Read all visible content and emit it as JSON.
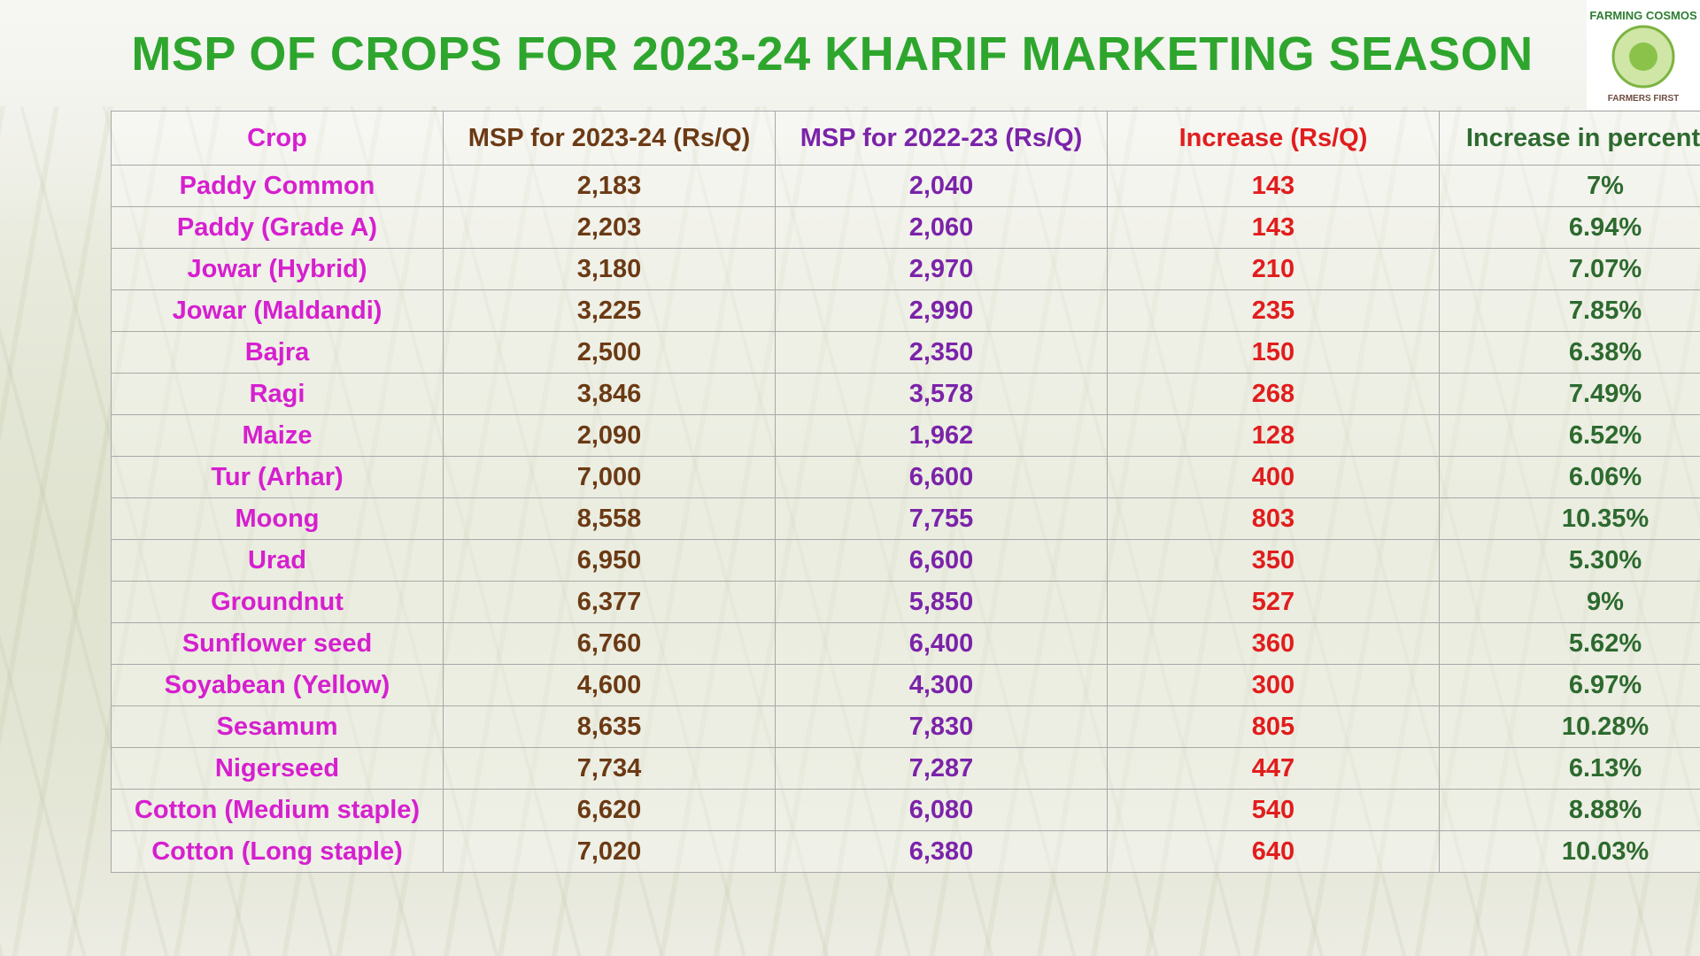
{
  "title": "MSP OF CROPS FOR 2023-24 KHARIF MARKETING SEASON",
  "logo": {
    "top": "FARMING COSMOS",
    "bottom": "FARMERS FIRST"
  },
  "table": {
    "headers": [
      "Crop",
      "MSP for 2023-24 (Rs/Q)",
      "MSP for 2022-23 (Rs/Q)",
      "Increase (Rs/Q)",
      "Increase in percentage"
    ],
    "rows": [
      [
        "Paddy Common",
        "2,183",
        "2,040",
        "143",
        "7%"
      ],
      [
        "Paddy (Grade A)",
        "2,203",
        "2,060",
        "143",
        "6.94%"
      ],
      [
        "Jowar (Hybrid)",
        "3,180",
        "2,970",
        "210",
        "7.07%"
      ],
      [
        "Jowar (Maldandi)",
        "3,225",
        "2,990",
        "235",
        "7.85%"
      ],
      [
        "Bajra",
        "2,500",
        "2,350",
        "150",
        "6.38%"
      ],
      [
        "Ragi",
        "3,846",
        "3,578",
        "268",
        "7.49%"
      ],
      [
        "Maize",
        "2,090",
        "1,962",
        "128",
        "6.52%"
      ],
      [
        "Tur (Arhar)",
        "7,000",
        "6,600",
        "400",
        "6.06%"
      ],
      [
        "Moong",
        "8,558",
        "7,755",
        "803",
        "10.35%"
      ],
      [
        "Urad",
        "6,950",
        "6,600",
        "350",
        "5.30%"
      ],
      [
        "Groundnut",
        "6,377",
        "5,850",
        "527",
        "9%"
      ],
      [
        "Sunflower seed",
        "6,760",
        "6,400",
        "360",
        "5.62%"
      ],
      [
        "Soyabean (Yellow)",
        "4,600",
        "4,300",
        "300",
        "6.97%"
      ],
      [
        "Sesamum",
        "8,635",
        "7,830",
        "805",
        "10.28%"
      ],
      [
        "Nigerseed",
        "7,734",
        "7,287",
        "447",
        "6.13%"
      ],
      [
        "Cotton (Medium staple)",
        "6,620",
        "6,080",
        "540",
        "8.88%"
      ],
      [
        "Cotton (Long staple)",
        "7,020",
        "6,380",
        "640",
        "10.03%"
      ]
    ]
  }
}
